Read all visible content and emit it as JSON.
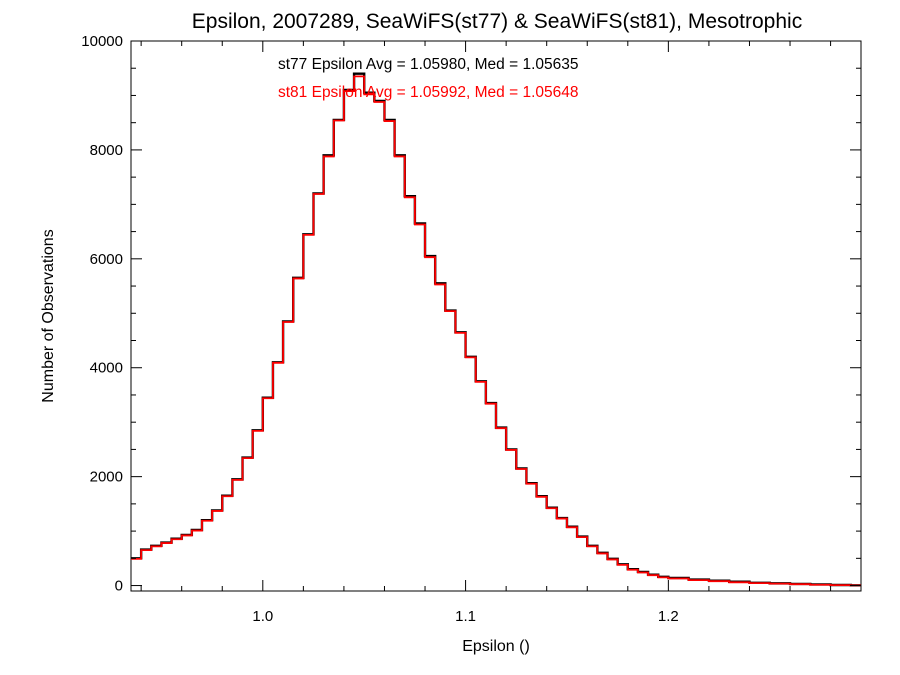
{
  "chart_data": {
    "type": "line",
    "title": "Epsilon, 2007289, SeaWiFS(st77) & SeaWiFS(st81), Mesotrophic",
    "xlabel": "Epsilon ()",
    "ylabel": "Number of Observations",
    "xlim": [
      0.935,
      1.295
    ],
    "ylim": [
      -100,
      10000
    ],
    "x_ticks": [
      1.0,
      1.1,
      1.2
    ],
    "x_tick_labels": [
      "1.0",
      "1.1",
      "1.2"
    ],
    "y_ticks": [
      0,
      2000,
      4000,
      6000,
      8000,
      10000
    ],
    "y_tick_labels": [
      "0",
      "2000",
      "4000",
      "6000",
      "8000",
      "10000"
    ],
    "x_minor_step": 0.02,
    "y_minor_step": 500,
    "grid": false,
    "annotations": [
      {
        "text": "st77 Epsilon Avg = 1.05980, Med = 1.05635",
        "color": "#000000"
      },
      {
        "text": "st81 Epsilon Avg = 1.05992, Med = 1.05648",
        "color": "#ff0000"
      }
    ],
    "series": [
      {
        "color": "#000000",
        "x": [
          0.935,
          0.94,
          0.945,
          0.95,
          0.955,
          0.96,
          0.965,
          0.97,
          0.975,
          0.98,
          0.985,
          0.99,
          0.995,
          1.0,
          1.005,
          1.01,
          1.015,
          1.02,
          1.025,
          1.03,
          1.035,
          1.04,
          1.045,
          1.05,
          1.055,
          1.06,
          1.065,
          1.07,
          1.075,
          1.08,
          1.085,
          1.09,
          1.095,
          1.1,
          1.105,
          1.11,
          1.115,
          1.12,
          1.125,
          1.13,
          1.135,
          1.14,
          1.145,
          1.15,
          1.155,
          1.16,
          1.165,
          1.17,
          1.175,
          1.18,
          1.185,
          1.19,
          1.195,
          1.2,
          1.21,
          1.22,
          1.23,
          1.24,
          1.25,
          1.26,
          1.27,
          1.28,
          1.29,
          1.295
        ],
        "y": [
          500,
          660,
          730,
          790,
          860,
          930,
          1020,
          1200,
          1380,
          1650,
          1950,
          2350,
          2850,
          3450,
          4100,
          4850,
          5650,
          6450,
          7200,
          7900,
          8550,
          9100,
          9400,
          9050,
          8900,
          8550,
          7900,
          7150,
          6650,
          6050,
          5550,
          5050,
          4650,
          4200,
          3750,
          3350,
          2900,
          2500,
          2150,
          1880,
          1640,
          1430,
          1240,
          1080,
          900,
          730,
          600,
          490,
          390,
          300,
          250,
          200,
          160,
          140,
          110,
          90,
          70,
          50,
          40,
          30,
          20,
          10,
          5,
          5
        ]
      },
      {
        "color": "#ff0000",
        "x": [
          0.935,
          0.94,
          0.945,
          0.95,
          0.955,
          0.96,
          0.965,
          0.97,
          0.975,
          0.98,
          0.985,
          0.99,
          0.995,
          1.0,
          1.005,
          1.01,
          1.015,
          1.02,
          1.025,
          1.03,
          1.035,
          1.04,
          1.045,
          1.05,
          1.055,
          1.06,
          1.065,
          1.07,
          1.075,
          1.08,
          1.085,
          1.09,
          1.095,
          1.1,
          1.105,
          1.11,
          1.115,
          1.12,
          1.125,
          1.13,
          1.135,
          1.14,
          1.145,
          1.15,
          1.155,
          1.16,
          1.165,
          1.17,
          1.175,
          1.18,
          1.185,
          1.19,
          1.195,
          1.2,
          1.21,
          1.22,
          1.23,
          1.24,
          1.25,
          1.26,
          1.27,
          1.28,
          1.29,
          1.295
        ],
        "y": [
          490,
          650,
          720,
          780,
          850,
          920,
          1010,
          1190,
          1370,
          1640,
          1940,
          2340,
          2840,
          3440,
          4090,
          4840,
          5640,
          6440,
          7190,
          7880,
          8540,
          9080,
          9350,
          9020,
          8880,
          8530,
          7880,
          7130,
          6630,
          6030,
          5530,
          5040,
          4640,
          4190,
          3740,
          3340,
          2890,
          2490,
          2140,
          1870,
          1630,
          1420,
          1230,
          1070,
          890,
          720,
          590,
          480,
          380,
          290,
          240,
          190,
          150,
          130,
          100,
          80,
          60,
          45,
          35,
          25,
          15,
          8,
          3,
          3
        ]
      }
    ]
  }
}
